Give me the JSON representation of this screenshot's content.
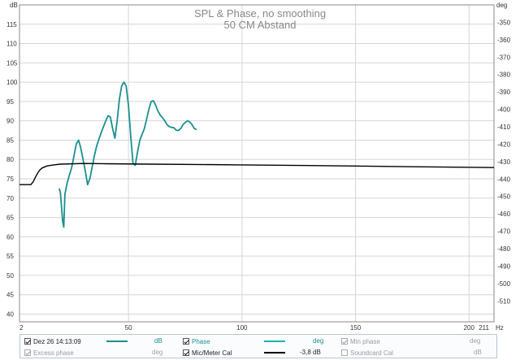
{
  "chart_data": {
    "type": "line",
    "title": "SPL & Phase, no smoothing",
    "subtitle": "50 CM Abstand",
    "left_axis_unit": "dB",
    "right_axis_unit": "deg",
    "x_unit": "Hz",
    "xlim": [
      2,
      211
    ],
    "ylim_left": [
      38,
      120
    ],
    "ylim_right": [
      -522,
      -340
    ],
    "x_ticks": [
      2,
      50,
      100,
      150,
      200,
      211
    ],
    "y_ticks_left": [
      115,
      110,
      105,
      100,
      95,
      90,
      85,
      80,
      75,
      70,
      65,
      60,
      55,
      50,
      45,
      40
    ],
    "y_ticks_right": [
      -350,
      -360,
      -370,
      -380,
      -390,
      -400,
      -410,
      -420,
      -430,
      -440,
      -450,
      -460,
      -470,
      -480,
      -490,
      -500,
      -510
    ],
    "grid": true,
    "series": [
      {
        "name": "Dez 26 14:13:09",
        "color": "#1a8f8f",
        "points": [
          [
            19.5,
            72.5
          ],
          [
            20,
            71.5
          ],
          [
            21,
            64
          ],
          [
            21.5,
            62.5
          ],
          [
            22,
            71
          ],
          [
            23,
            74
          ],
          [
            24,
            76
          ],
          [
            25,
            78
          ],
          [
            26,
            81
          ],
          [
            27,
            84
          ],
          [
            28,
            85
          ],
          [
            29,
            83
          ],
          [
            30,
            80
          ],
          [
            31,
            77
          ],
          [
            32,
            73.5
          ],
          [
            33,
            75
          ],
          [
            34,
            78
          ],
          [
            35,
            81
          ],
          [
            36,
            83.5
          ],
          [
            38,
            87
          ],
          [
            40,
            90
          ],
          [
            41,
            91.3
          ],
          [
            42,
            91
          ],
          [
            43,
            88
          ],
          [
            44,
            85.5
          ],
          [
            45,
            90
          ],
          [
            46,
            95.5
          ],
          [
            47,
            99
          ],
          [
            48,
            100
          ],
          [
            49,
            99
          ],
          [
            50,
            94
          ],
          [
            51,
            86
          ],
          [
            52,
            79
          ],
          [
            53,
            78.5
          ],
          [
            54,
            82
          ],
          [
            55,
            85
          ],
          [
            56,
            86.5
          ],
          [
            57,
            88
          ],
          [
            58,
            90.5
          ],
          [
            59,
            93
          ],
          [
            60,
            95
          ],
          [
            61,
            95.2
          ],
          [
            62,
            94
          ],
          [
            63,
            92.5
          ],
          [
            64,
            91.5
          ],
          [
            65,
            90.8
          ],
          [
            66,
            90
          ],
          [
            67,
            89
          ],
          [
            68,
            88.5
          ],
          [
            69,
            88.3
          ],
          [
            70,
            88.2
          ],
          [
            71,
            87.6
          ],
          [
            72,
            87.5
          ],
          [
            73,
            88
          ],
          [
            74,
            89
          ],
          [
            75,
            89.6
          ],
          [
            76,
            90
          ],
          [
            77,
            89.7
          ],
          [
            78,
            89
          ],
          [
            79,
            88
          ],
          [
            80,
            87.7
          ]
        ]
      },
      {
        "name": "Mic/Meter Cal",
        "color": "#000000",
        "points": [
          [
            2,
            73.5
          ],
          [
            7,
            73.5
          ],
          [
            8,
            74.2
          ],
          [
            9,
            75.4
          ],
          [
            10,
            76.5
          ],
          [
            11,
            77.3
          ],
          [
            12,
            77.8
          ],
          [
            14,
            78.3
          ],
          [
            17,
            78.6
          ],
          [
            20,
            78.8
          ],
          [
            30,
            78.95
          ],
          [
            40,
            78.9
          ],
          [
            60,
            78.8
          ],
          [
            80,
            78.7
          ],
          [
            100,
            78.6
          ],
          [
            120,
            78.5
          ],
          [
            150,
            78.3
          ],
          [
            180,
            78.1
          ],
          [
            211,
            77.9
          ]
        ]
      }
    ]
  },
  "legend": {
    "row1": [
      {
        "label": "Dez 26 14:13:09",
        "checked": true,
        "enabled": true,
        "color": "#1a8f8f",
        "unit": "dB",
        "unit_color": "#1a8f8f"
      },
      {
        "label": "Phase",
        "checked": true,
        "enabled": true,
        "color": "#20b0b0",
        "unit": "deg",
        "unit_color": "#1a8f8f"
      },
      {
        "label": "Min phase",
        "checked": true,
        "enabled": false,
        "color": "",
        "unit": "deg",
        "unit_color": "#a0a0a0"
      }
    ],
    "row2": [
      {
        "label": "Excess phase",
        "checked": true,
        "enabled": false,
        "color": "",
        "unit": "deg",
        "unit_color": "#a0a0a0"
      },
      {
        "label": "Mic/Meter Cal",
        "checked": true,
        "enabled": true,
        "color": "#000000",
        "unit": "-3,8 dB",
        "unit_color": "#222222"
      },
      {
        "label": "Soundcard Cal",
        "checked": false,
        "enabled": false,
        "color": "",
        "unit": "dB",
        "unit_color": "#a0a0a0"
      }
    ]
  }
}
